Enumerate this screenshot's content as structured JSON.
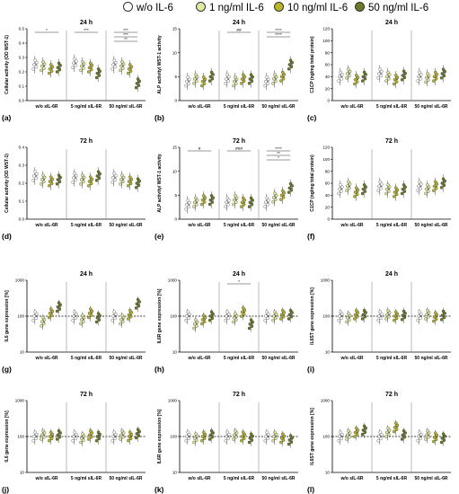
{
  "legend": {
    "items": [
      {
        "label": "w/o IL-6",
        "color": "#ffffff"
      },
      {
        "label": "1 ng/ml IL-6",
        "color": "#e3e8a0"
      },
      {
        "label": "10 ng/ml IL-6",
        "color": "#b9b42c"
      },
      {
        "label": "50 ng/ml IL-6",
        "color": "#6a7a2a"
      }
    ]
  },
  "groups": [
    "w/o sIL-6R",
    "5 ng/ml sIL-6R",
    "50 ng/ml sIL-6R"
  ],
  "chart_data": [
    {
      "id": "a",
      "type": "scatter",
      "title": "24 h",
      "ylabel": "Cellular activity (OD WST-1)",
      "ylim": [
        0,
        0.5
      ],
      "yticks": [
        "0.0",
        "0.1",
        "0.2",
        "0.3",
        "0.4",
        "0.5"
      ],
      "log": false,
      "refline": null,
      "groups": [
        [
          0.25,
          0.24,
          0.22,
          0.23
        ],
        [
          0.26,
          0.24,
          0.23,
          0.19
        ],
        [
          0.25,
          0.24,
          0.22,
          0.12
        ]
      ],
      "annotations": [
        {
          "group": 0,
          "text": "*"
        },
        {
          "group": 1,
          "text": "***"
        },
        {
          "group": 2,
          "text": "***"
        },
        {
          "group": 2,
          "text": "***"
        },
        {
          "group": 2,
          "text": "**"
        }
      ]
    },
    {
      "id": "b",
      "type": "scatter",
      "title": "24 h",
      "ylabel": "ALP activity/ WST-1 activity",
      "ylim": [
        0,
        15
      ],
      "yticks": [
        "0",
        "5",
        "10",
        "15"
      ],
      "log": false,
      "refline": null,
      "groups": [
        [
          4,
          4.5,
          4,
          5
        ],
        [
          4.5,
          4,
          4.5,
          4.5
        ],
        [
          4,
          4.5,
          5,
          7.5
        ]
      ],
      "annotations": [
        {
          "group": 1,
          "text": "##"
        },
        {
          "group": 2,
          "text": "****"
        },
        {
          "group": 2,
          "text": "****"
        }
      ]
    },
    {
      "id": "c",
      "type": "scatter",
      "title": "24 h",
      "ylabel": "C1CP (ng/mg total protein)",
      "ylim": [
        0,
        120
      ],
      "yticks": [
        "0",
        "20",
        "40",
        "60",
        "80",
        "100",
        "120"
      ],
      "log": false,
      "refline": null,
      "groups": [
        [
          40,
          45,
          35,
          40
        ],
        [
          45,
          40,
          35,
          42
        ],
        [
          40,
          38,
          40,
          45
        ]
      ],
      "annotations": []
    },
    {
      "id": "d",
      "type": "scatter",
      "title": "72 h",
      "ylabel": "Cellular activity (OD WST-1)",
      "ylim": [
        0,
        0.4
      ],
      "yticks": [
        "0.0",
        "0.1",
        "0.2",
        "0.3",
        "0.4"
      ],
      "log": false,
      "refline": null,
      "groups": [
        [
          0.24,
          0.22,
          0.21,
          0.22
        ],
        [
          0.23,
          0.22,
          0.21,
          0.24
        ],
        [
          0.23,
          0.22,
          0.21,
          0.2
        ]
      ],
      "annotations": []
    },
    {
      "id": "e",
      "type": "scatter",
      "title": "72 h",
      "ylabel": "ALP activity/ WST-1 activity",
      "ylim": [
        0,
        15
      ],
      "yticks": [
        "0",
        "5",
        "10",
        "15"
      ],
      "log": false,
      "refline": null,
      "groups": [
        [
          3,
          3.5,
          4,
          4
        ],
        [
          3.5,
          4,
          3.5,
          3.5
        ],
        [
          3.5,
          4.5,
          5,
          6.5
        ]
      ],
      "annotations": [
        {
          "group": 0,
          "text": "#"
        },
        {
          "group": 1,
          "text": "###"
        },
        {
          "group": 2,
          "text": "****"
        },
        {
          "group": 2,
          "text": "**"
        },
        {
          "group": 2,
          "text": "*"
        }
      ]
    },
    {
      "id": "f",
      "type": "scatter",
      "title": "72 h",
      "ylabel": "C1CP (ng/mg total protein)",
      "ylim": [
        0,
        120
      ],
      "yticks": [
        "0",
        "20",
        "40",
        "60",
        "80",
        "100",
        "120"
      ],
      "log": false,
      "refline": null,
      "groups": [
        [
          50,
          55,
          45,
          50
        ],
        [
          55,
          50,
          45,
          50
        ],
        [
          55,
          50,
          55,
          60
        ]
      ],
      "annotations": []
    },
    {
      "id": "g",
      "type": "scatter",
      "title": "24 h",
      "ylabel": "IL6 gene expression [%]",
      "ylim": [
        10,
        1000
      ],
      "yticks": [
        "10",
        "100",
        "1000"
      ],
      "log": true,
      "refline": 100,
      "groups": [
        [
          100,
          70,
          120,
          180
        ],
        [
          100,
          80,
          120,
          90
        ],
        [
          100,
          80,
          110,
          220
        ]
      ],
      "annotations": []
    },
    {
      "id": "h",
      "type": "scatter",
      "title": "24 h",
      "ylabel": "IL6R gene expression [%]",
      "ylim": [
        10,
        1000
      ],
      "yticks": [
        "10",
        "100",
        "1000"
      ],
      "log": true,
      "refline": 100,
      "groups": [
        [
          100,
          60,
          80,
          100
        ],
        [
          100,
          90,
          130,
          60
        ],
        [
          100,
          100,
          110,
          110
        ]
      ],
      "annotations": [
        {
          "group": 1,
          "text": "*"
        }
      ]
    },
    {
      "id": "i",
      "type": "scatter",
      "title": "24 h",
      "ylabel": "IL6ST gene expression [%]",
      "ylim": [
        10,
        1000
      ],
      "yticks": [
        "10",
        "100",
        "1000"
      ],
      "log": true,
      "refline": 100,
      "groups": [
        [
          100,
          90,
          110,
          110
        ],
        [
          100,
          110,
          100,
          105
        ],
        [
          100,
          110,
          95,
          105
        ]
      ],
      "annotations": []
    },
    {
      "id": "j",
      "type": "scatter",
      "title": "72 h",
      "ylabel": "IL6 gene expression [%]",
      "ylim": [
        10,
        1000
      ],
      "yticks": [
        "10",
        "100",
        "1000"
      ],
      "log": true,
      "refline": 100,
      "groups": [
        [
          100,
          110,
          100,
          110
        ],
        [
          100,
          90,
          110,
          100
        ],
        [
          100,
          110,
          100,
          120
        ]
      ],
      "annotations": []
    },
    {
      "id": "k",
      "type": "scatter",
      "title": "72 h",
      "ylabel": "IL6R gene expression [%]",
      "ylim": [
        10,
        1000
      ],
      "yticks": [
        "10",
        "100",
        "1000"
      ],
      "log": true,
      "refline": 100,
      "groups": [
        [
          100,
          90,
          100,
          110
        ],
        [
          100,
          110,
          100,
          90
        ],
        [
          100,
          100,
          90,
          80
        ]
      ],
      "annotations": []
    },
    {
      "id": "l",
      "type": "scatter",
      "title": "72 h",
      "ylabel": "IL6ST gene expression [%]",
      "ylim": [
        10,
        1000
      ],
      "yticks": [
        "10",
        "100",
        "1000"
      ],
      "log": true,
      "refline": 100,
      "groups": [
        [
          100,
          110,
          130,
          150
        ],
        [
          100,
          130,
          180,
          110
        ],
        [
          100,
          110,
          95,
          90
        ]
      ],
      "annotations": []
    }
  ]
}
